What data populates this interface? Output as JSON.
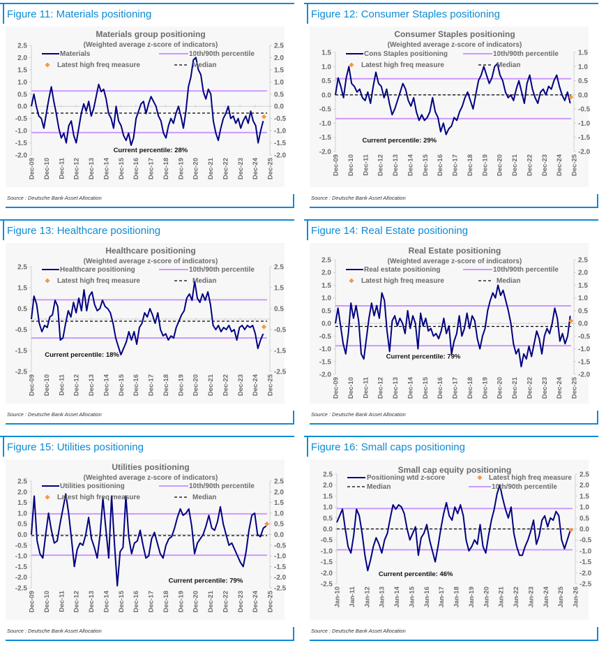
{
  "source_label": "Source : Deutsche Bank Asset Allocation",
  "colors": {
    "accent": "#0a8bd6",
    "series": "#000080",
    "percentile": "#cc99ff",
    "median": "#000000",
    "marker": "#f79646",
    "axis_text": "#6b6b6b"
  },
  "chart_data": [
    {
      "figure_title": "Figure 11: Materials positioning",
      "type": "line",
      "title": "Materials group positioning",
      "subtitle": "(Weighted average z-score of indicators)",
      "ylim": [
        -2.0,
        2.5
      ],
      "yticks": [
        "2.5",
        "2.0",
        "1.5",
        "1.0",
        "0.5",
        "0.0",
        "-0.5",
        "-1.0",
        "-1.5",
        "-2.0"
      ],
      "ytick_values": [
        2.5,
        2.0,
        1.5,
        1.0,
        0.5,
        0.0,
        -0.5,
        -1.0,
        -1.5,
        -2.0
      ],
      "xticks": [
        "Dec-09",
        "Dec-10",
        "Dec-11",
        "Dec-12",
        "Dec-13",
        "Dec-14",
        "Dec-15",
        "Dec-16",
        "Dec-17",
        "Dec-18",
        "Dec-19",
        "Dec-20",
        "Dec-21",
        "Dec-22",
        "Dec-23",
        "Dec-24",
        "Dec-25"
      ],
      "legend": {
        "series": "Materials",
        "percentile": "10th/90th percentile",
        "marker": "Latest high freq measure",
        "median": "Median"
      },
      "legend_layout": "two-column",
      "percentile_high": 0.63,
      "percentile_low": -1.08,
      "median": -0.28,
      "latest_high_freq": {
        "x": 15.6,
        "y": -0.43
      },
      "current_percentile_label": "Current percentile: 28%",
      "annotation_pos": [
        5.5,
        -1.8
      ],
      "series": [
        0.0,
        0.5,
        0.0,
        -0.4,
        -0.5,
        -0.9,
        -0.3,
        0.3,
        0.8,
        0.2,
        -0.3,
        -0.9,
        -1.3,
        -1.1,
        -1.5,
        -0.8,
        -0.6,
        -1.2,
        -1.5,
        -0.9,
        -0.3,
        0.1,
        -0.2,
        0.2,
        -0.4,
        -0.1,
        0.4,
        0.9,
        0.6,
        0.7,
        0.3,
        -0.3,
        -0.5,
        -0.9,
        0.0,
        -0.6,
        -0.8,
        -1.2,
        -1.4,
        -1.1,
        -1.6,
        -1.3,
        -0.5,
        -0.2,
        0.1,
        0.2,
        -0.3,
        0.1,
        0.4,
        0.2,
        0.0,
        -0.4,
        -0.6,
        -1.1,
        -1.3,
        -0.8,
        -0.5,
        -0.7,
        -0.3,
        0.0,
        -0.4,
        -0.9,
        -0.2,
        0.8,
        1.2,
        1.9,
        2.0,
        1.5,
        1.3,
        0.6,
        0.3,
        0.7,
        0.5,
        -0.6,
        -1.1,
        -1.4,
        -0.9,
        -0.5,
        -0.3,
        0.0,
        -0.5,
        -0.4,
        -0.7,
        -0.5,
        -0.9,
        -0.6,
        -0.4,
        -0.7,
        -0.2,
        -0.6,
        -0.8,
        -1.5,
        -1.0,
        -0.6
      ]
    },
    {
      "figure_title": "Figure 12: Consumer Staples positioning",
      "type": "line",
      "title": "Consumer Staples positioning",
      "subtitle": "(Weighted average z-score of indicators)",
      "ylim": [
        -2.0,
        1.5
      ],
      "yticks": [
        "1.5",
        "1.0",
        "0.5",
        "0.0",
        "-0.5",
        "-1.0",
        "-1.5",
        "-2.0"
      ],
      "ytick_values": [
        1.5,
        1.0,
        0.5,
        0.0,
        -0.5,
        -1.0,
        -1.5,
        -2.0
      ],
      "xticks": [
        "Dec-09",
        "Dec-10",
        "Dec-11",
        "Dec-12",
        "Dec-13",
        "Dec-14",
        "Dec-15",
        "Dec-16",
        "Dec-17",
        "Dec-18",
        "Dec-19",
        "Dec-20",
        "Dec-21",
        "Dec-22",
        "Dec-23",
        "Dec-24",
        "Dec-25"
      ],
      "legend": {
        "series": "Cons Staples positioning",
        "percentile": "10th/90th percentile",
        "marker": "Latest high freq measure",
        "median": "Median"
      },
      "legend_layout": "two-column",
      "percentile_high": 0.57,
      "percentile_low": -0.84,
      "median": 0.0,
      "latest_high_freq": {
        "x": 15.8,
        "y": -0.08
      },
      "current_percentile_label": "Current percentile: 29%",
      "annotation_pos": [
        1.8,
        -1.6
      ],
      "series": [
        0.0,
        0.6,
        0.3,
        -0.1,
        0.6,
        1.0,
        0.4,
        0.3,
        0.1,
        0.2,
        -0.1,
        -0.2,
        0.1,
        -0.3,
        0.3,
        0.8,
        0.4,
        0.3,
        -0.1,
        0.2,
        -0.3,
        -0.7,
        -0.5,
        -0.2,
        0.1,
        0.4,
        0.2,
        -0.2,
        -0.4,
        -0.1,
        -0.6,
        -0.9,
        -0.7,
        -0.9,
        -0.8,
        -0.6,
        -0.1,
        -0.6,
        -0.8,
        -1.3,
        -1.0,
        -1.4,
        -1.2,
        -1.1,
        -0.8,
        -0.9,
        -0.6,
        -0.4,
        -0.1,
        0.1,
        -0.2,
        -0.5,
        0.0,
        0.5,
        0.7,
        1.0,
        0.7,
        0.4,
        0.6,
        1.0,
        1.1,
        0.7,
        0.5,
        0.1,
        -0.1,
        0.0,
        -0.2,
        0.2,
        0.5,
        0.1,
        -0.3,
        0.4,
        0.7,
        0.2,
        -0.1,
        -0.3,
        0.1,
        0.2,
        0.0,
        0.3,
        0.2,
        0.5,
        0.7,
        0.3,
        0.0,
        -0.2,
        0.1,
        -0.3
      ]
    },
    {
      "figure_title": "Figure 13: Healthcare positioning",
      "type": "line",
      "title": "Healthcare positioning",
      "subtitle": "(Weighted average z-score of indicators)",
      "ylim": [
        -2.5,
        2.5
      ],
      "yticks": [
        "2.5",
        "1.5",
        "0.5",
        "-0.5",
        "-1.5",
        "-2.5"
      ],
      "ytick_values": [
        2.5,
        1.5,
        0.5,
        -0.5,
        -1.5,
        -2.5
      ],
      "xticks": [
        "Dec-09",
        "Dec-10",
        "Dec-11",
        "Dec-12",
        "Dec-13",
        "Dec-14",
        "Dec-15",
        "Dec-16",
        "Dec-17",
        "Dec-18",
        "Dec-19",
        "Dec-20",
        "Dec-21",
        "Dec-22",
        "Dec-23",
        "Dec-24",
        "Dec-25"
      ],
      "legend": {
        "series": "Healthcare positioning",
        "percentile": "10th/90th percentile",
        "marker": "Latest high freq measure",
        "median": "Median"
      },
      "legend_layout": "two-column",
      "percentile_high": 0.92,
      "percentile_low": -0.9,
      "median": -0.1,
      "latest_high_freq": {
        "x": 15.6,
        "y": -0.37
      },
      "current_percentile_label": "Current percentile: 18%",
      "annotation_pos": [
        0.9,
        -1.7
      ],
      "series": [
        0.0,
        1.1,
        0.7,
        -0.2,
        -0.6,
        -0.3,
        -0.4,
        0.1,
        0.2,
        0.9,
        0.6,
        -1.0,
        -0.9,
        -0.2,
        0.4,
        0.1,
        0.8,
        0.3,
        1.0,
        0.4,
        1.4,
        0.4,
        1.1,
        1.3,
        0.7,
        0.4,
        0.5,
        0.9,
        0.6,
        0.5,
        0.3,
        -0.2,
        -0.9,
        -1.3,
        -1.7,
        -1.4,
        -1.1,
        -0.6,
        -1.0,
        -0.6,
        -1.2,
        -0.4,
        -0.2,
        0.3,
        0.1,
        0.5,
        0.2,
        -0.2,
        0.3,
        -0.5,
        -0.8,
        -0.7,
        -1.0,
        -0.8,
        -0.9,
        -0.4,
        -0.1,
        0.2,
        0.4,
        1.0,
        1.2,
        0.9,
        1.8,
        1.0,
        0.8,
        1.2,
        0.9,
        1.3,
        0.7,
        -0.3,
        -0.5,
        -0.3,
        -0.6,
        -0.4,
        -0.5,
        -0.3,
        -0.6,
        -0.5,
        -1.0,
        -0.4,
        -0.3,
        -0.5,
        -0.3,
        -0.4,
        -0.3,
        -0.7,
        -1.4,
        -1.0,
        -0.7
      ]
    },
    {
      "figure_title": "Figure 14: Real Estate positioning",
      "type": "line",
      "title": "Real Estate positioning",
      "subtitle": "(Weighted average z-score of indicators)",
      "ylim": [
        -2.0,
        2.5
      ],
      "yticks": [
        "2.5",
        "2.0",
        "1.5",
        "1.0",
        "0.5",
        "0.0",
        "-0.5",
        "-1.0",
        "-1.5",
        "-2.0"
      ],
      "ytick_values": [
        2.5,
        2.0,
        1.5,
        1.0,
        0.5,
        0.0,
        -0.5,
        -1.0,
        -1.5,
        -2.0
      ],
      "xticks": [
        "Dec-09",
        "Dec-10",
        "Dec-11",
        "Dec-12",
        "Dec-13",
        "Dec-14",
        "Dec-15",
        "Dec-16",
        "Dec-17",
        "Dec-18",
        "Dec-19",
        "Dec-20",
        "Dec-21",
        "Dec-22",
        "Dec-23",
        "Dec-24",
        "Dec-25"
      ],
      "legend": {
        "series": "Real estate positioning",
        "percentile": "10th/90th percentile",
        "marker": "Latest high freq measure",
        "median": "Median"
      },
      "legend_layout": "two-column",
      "percentile_high": 0.69,
      "percentile_low": -0.88,
      "median": -0.12,
      "latest_high_freq": {
        "x": 15.8,
        "y": 0.1
      },
      "current_percentile_label": "Current percentile: 79%",
      "annotation_pos": [
        3.4,
        -1.3
      ],
      "series": [
        0.0,
        0.6,
        -0.1,
        -0.8,
        -1.2,
        -0.4,
        0.8,
        0.2,
        0.7,
        0.1,
        -1.2,
        -1.4,
        -0.6,
        0.2,
        0.8,
        0.3,
        0.7,
        0.2,
        1.2,
        0.9,
        -0.3,
        -1.1,
        0.1,
        0.3,
        -0.1,
        0.2,
        0.0,
        -0.4,
        0.5,
        -0.2,
        0.3,
        0.0,
        -1.0,
        0.4,
        -0.1,
        0.2,
        -0.3,
        -0.2,
        -0.5,
        -0.4,
        -0.6,
        -0.3,
        0.2,
        -0.4,
        -0.1,
        -1.2,
        -0.7,
        -0.4,
        0.3,
        -0.5,
        -0.2,
        0.4,
        -0.2,
        0.3,
        0.1,
        -0.6,
        -1.0,
        -0.5,
        -0.2,
        0.5,
        0.9,
        1.2,
        1.0,
        1.5,
        1.1,
        1.3,
        0.9,
        0.5,
        0.0,
        -0.8,
        -1.2,
        -1.0,
        -1.7,
        -1.2,
        -1.4,
        -0.9,
        -1.3,
        -0.8,
        -0.3,
        -0.6,
        -1.2,
        -0.5,
        -0.2,
        -0.4,
        0.0,
        0.6,
        0.2,
        -0.7,
        -0.4,
        -0.8,
        -0.5,
        0.3
      ]
    },
    {
      "figure_title": "Figure 15: Utilities positioning",
      "type": "line",
      "title": "Utilities positioning",
      "subtitle": "(Weighted average z-score of indicators)",
      "ylim": [
        -2.5,
        2.5
      ],
      "yticks": [
        "2.5",
        "2.0",
        "1.5",
        "1.0",
        "0.5",
        "0.0",
        "-0.5",
        "-1.0",
        "-1.5",
        "-2.0",
        "-2.5"
      ],
      "ytick_values": [
        2.5,
        2.0,
        1.5,
        1.0,
        0.5,
        0.0,
        -0.5,
        -1.0,
        -1.5,
        -2.0,
        -2.5
      ],
      "xticks": [
        "Dec-09",
        "Dec-10",
        "Dec-11",
        "Dec-12",
        "Dec-13",
        "Dec-14",
        "Dec-15",
        "Dec-16",
        "Dec-17",
        "Dec-18",
        "Dec-19",
        "Dec-20",
        "Dec-21",
        "Dec-22",
        "Dec-23",
        "Dec-24",
        "Dec-25"
      ],
      "legend": {
        "series": "Utilities positioning",
        "percentile": "10th/90th percentile",
        "marker": "Latest high freq measure",
        "median": "Median"
      },
      "legend_layout": "two-column",
      "percentile_high": 0.97,
      "percentile_low": -0.97,
      "median": -0.05,
      "latest_high_freq": {
        "x": 15.8,
        "y": 0.5
      },
      "current_percentile_label": "Current percentile: 79%",
      "annotation_pos": [
        9.2,
        -2.15
      ],
      "series": [
        0.0,
        1.8,
        -0.3,
        -0.9,
        -1.1,
        0.0,
        1.0,
        0.2,
        -0.4,
        -0.3,
        0.5,
        1.2,
        1.9,
        1.0,
        -0.2,
        -1.5,
        -0.7,
        -0.4,
        -0.5,
        0.0,
        0.8,
        -0.2,
        -0.6,
        -1.1,
        0.0,
        1.7,
        0.3,
        -1.1,
        1.8,
        -0.4,
        -2.4,
        -0.8,
        -0.6,
        1.8,
        -0.1,
        -0.9,
        -0.4,
        -0.3,
        0.2,
        -0.5,
        -1.1,
        -1.0,
        -0.2,
        0.1,
        -0.4,
        -0.9,
        -1.1,
        -0.5,
        -0.2,
        -0.1,
        0.3,
        0.8,
        1.2,
        0.9,
        1.0,
        1.2,
        0.4,
        -0.9,
        -0.4,
        -0.2,
        0.0,
        0.4,
        0.9,
        0.3,
        0.2,
        0.6,
        1.3,
        0.5,
        0.0,
        -0.5,
        -0.4,
        -0.7,
        -1.0,
        -1.3,
        -1.5,
        -0.8,
        0.2,
        0.9,
        1.0,
        0.0,
        -0.1,
        0.3,
        0.4
      ]
    },
    {
      "figure_title": "Figure 16: Small caps positioning",
      "type": "line",
      "title": "Small cap equity positioning",
      "subtitle": "",
      "ylim": [
        -2.5,
        2.5
      ],
      "yticks": [
        "2.5",
        "2.0",
        "1.5",
        "1.0",
        "0.5",
        "0.0",
        "-0.5",
        "-1.0",
        "-1.5",
        "-2.0",
        "-2.5"
      ],
      "ytick_values": [
        2.5,
        2.0,
        1.5,
        1.0,
        0.5,
        0.0,
        -0.5,
        -1.0,
        -1.5,
        -2.0,
        -2.5
      ],
      "xticks": [
        "Jan-10",
        "Jan-11",
        "Jan-12",
        "Jan-13",
        "Jan-14",
        "Jan-15",
        "Jan-16",
        "Jan-17",
        "Jan-18",
        "Jan-19",
        "Jan-20",
        "Jan-21",
        "Jan-22",
        "Jan-23",
        "Jan-24",
        "Jan-25",
        "Jan-26"
      ],
      "legend": {
        "series": "Positioning wtd z-score",
        "percentile": "10th/90th percentile",
        "marker": "Latest high freq measure",
        "median": "Median"
      },
      "legend_layout": "small-cap",
      "percentile_high": 0.93,
      "percentile_low": -0.95,
      "median": 0.0,
      "latest_high_freq": {
        "x": 15.7,
        "y": -0.05
      },
      "current_percentile_label": "Current percentile: 46%",
      "annotation_pos": [
        2.8,
        -2.05
      ],
      "series": [
        0.3,
        0.6,
        0.9,
        0.0,
        -0.8,
        -1.1,
        -0.3,
        0.9,
        0.6,
        -0.2,
        -1.2,
        -1.9,
        -1.4,
        -0.8,
        -0.4,
        -0.7,
        -1.1,
        -0.5,
        -0.2,
        0.5,
        1.1,
        0.9,
        1.1,
        1.0,
        0.7,
        0.0,
        -0.5,
        -0.2,
        0.1,
        -1.2,
        -0.4,
        -0.2,
        0.2,
        -0.5,
        -1.0,
        -1.5,
        -0.8,
        0.0,
        0.7,
        1.2,
        0.6,
        0.4,
        1.0,
        0.7,
        1.1,
        0.6,
        -0.5,
        -1.0,
        -0.8,
        -0.5,
        -0.7,
        0.2,
        -0.8,
        -1.1,
        -0.3,
        0.4,
        0.9,
        1.6,
        2.0,
        1.4,
        0.9,
        0.5,
        1.0,
        -0.2,
        -0.8,
        -1.2,
        -1.2,
        -0.8,
        -0.5,
        -0.1,
        0.4,
        -0.7,
        -0.3,
        0.4,
        0.6,
        0.1,
        0.5,
        0.4,
        0.8,
        0.6,
        -0.5,
        -0.9,
        -0.5,
        -0.1
      ]
    }
  ]
}
